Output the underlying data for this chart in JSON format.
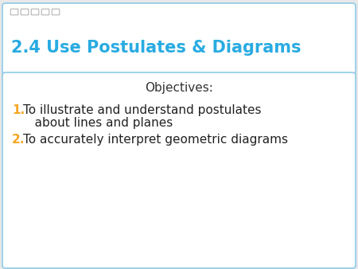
{
  "bg_color": "#e8e8e8",
  "title_box_color": "#ffffff",
  "title_text": "2.4 Use Postulates & Diagrams",
  "title_color": "#29abe2",
  "title_fontsize": 15,
  "content_box_color": "#ffffff",
  "objectives_label": "Objectives:",
  "objectives_color": "#333333",
  "objectives_fontsize": 11,
  "item1_number": "1.",
  "item1_number_color": "#f5a623",
  "item1_line1": "To illustrate and understand postulates",
  "item1_line2": "   about lines and planes",
  "item1_text_color": "#222222",
  "item2_number": "2.",
  "item2_number_color": "#f5a623",
  "item2_text": "To accurately interpret geometric diagrams",
  "item2_text_color": "#222222",
  "item_fontsize": 11,
  "dot_color": "#aaaaaa",
  "border_color": "#aaaaaa",
  "border_color_blue": "#8ecae6"
}
